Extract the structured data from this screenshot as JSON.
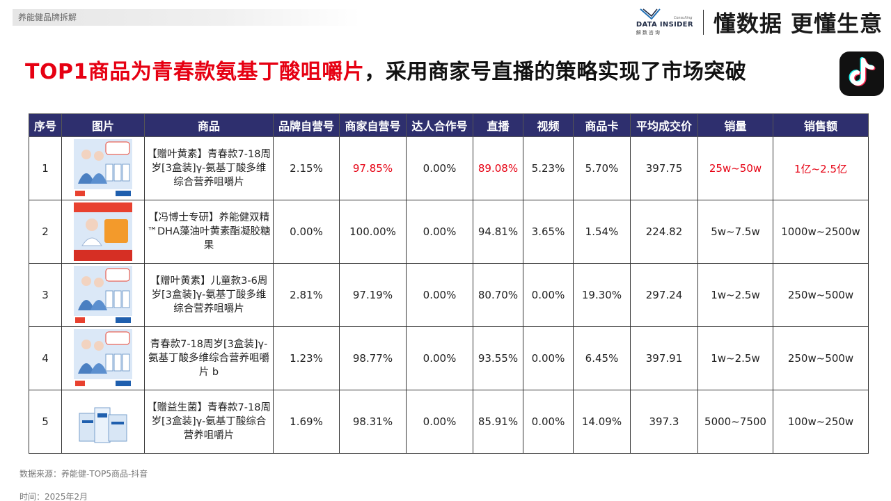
{
  "header": {
    "tag": "养能健品牌拆解",
    "logo_main": "DATA INSIDER",
    "logo_sub": "解数咨询",
    "logo_consult": "Consulting",
    "slogan": "懂数据 更懂生意"
  },
  "headline": {
    "red_part": "TOP1商品为青春款氨基丁酸咀嚼片",
    "dark_part": "，采用商家号直播的策略实现了市场突破"
  },
  "table": {
    "columns": [
      "序号",
      "图片",
      "商品",
      "品牌自营号",
      "商家自营号",
      "达人合作号",
      "直播",
      "视频",
      "商品卡",
      "平均成交价",
      "销量",
      "销售额"
    ],
    "rows": [
      {
        "no": "1",
        "product": "【赠叶黄素】青春款7-18周岁[3盒装]γ-氨基丁酸多维综合营养咀嚼片",
        "brand_self": "2.15%",
        "merchant_self": "97.85%",
        "influencer": "0.00%",
        "live": "89.08%",
        "video": "5.23%",
        "card": "5.70%",
        "avg_price": "397.75",
        "volume": "25w~50w",
        "sales": "1亿~2.5亿",
        "img": {
          "banner": "7-18岁",
          "bottom": "PICC 中国人民保险",
          "style": "people"
        }
      },
      {
        "no": "2",
        "product": "【冯博士专研】养能健双精™DHA藻油叶黄素酯凝胶糖果",
        "brand_self": "0.00%",
        "merchant_self": "100.00%",
        "influencer": "0.00%",
        "live": "94.81%",
        "video": "3.65%",
        "card": "1.54%",
        "avg_price": "224.82",
        "volume": "5w~7.5w",
        "sales": "1000w~2500w",
        "img": {
          "banner": "拒绝单一DHA",
          "price": "49",
          "style": "doctor"
        }
      },
      {
        "no": "3",
        "product": "【赠叶黄素】儿童款3-6周岁[3盒装]γ-氨基丁酸多维综合营养咀嚼片",
        "brand_self": "2.81%",
        "merchant_self": "97.19%",
        "influencer": "0.00%",
        "live": "80.70%",
        "video": "0.00%",
        "card": "19.30%",
        "avg_price": "297.24",
        "volume": "1w~2.5w",
        "sales": "250w~500w",
        "img": {
          "banner": "3-6岁",
          "bottom": "PICC 中国人民保险",
          "style": "people"
        }
      },
      {
        "no": "4",
        "product": "青春款7-18周岁[3盒装]γ-氨基丁酸多维综合营养咀嚼片 b",
        "brand_self": "1.23%",
        "merchant_self": "98.77%",
        "influencer": "0.00%",
        "live": "93.55%",
        "video": "0.00%",
        "card": "6.45%",
        "avg_price": "397.91",
        "volume": "1w~2.5w",
        "sales": "250w~500w",
        "img": {
          "banner": "7-18岁",
          "bottom": "PICC 中国人民保险",
          "style": "people"
        }
      },
      {
        "no": "5",
        "product": "【赠益生菌】青春款7-18周岁[3盒装]γ-氨基丁酸综合营养咀嚼片",
        "brand_self": "1.69%",
        "merchant_self": "98.31%",
        "influencer": "0.00%",
        "live": "85.91%",
        "video": "0.00%",
        "card": "14.09%",
        "avg_price": "397.3",
        "volume": "5000~7500",
        "sales": "100w~250w",
        "img": {
          "style": "boxes"
        }
      }
    ]
  },
  "footer": {
    "source": "数据来源：养能健-TOP5商品-抖音",
    "time": "时间：2025年2月"
  },
  "colors": {
    "header_bg": "#2e2f6e",
    "accent_red": "#e60012"
  }
}
